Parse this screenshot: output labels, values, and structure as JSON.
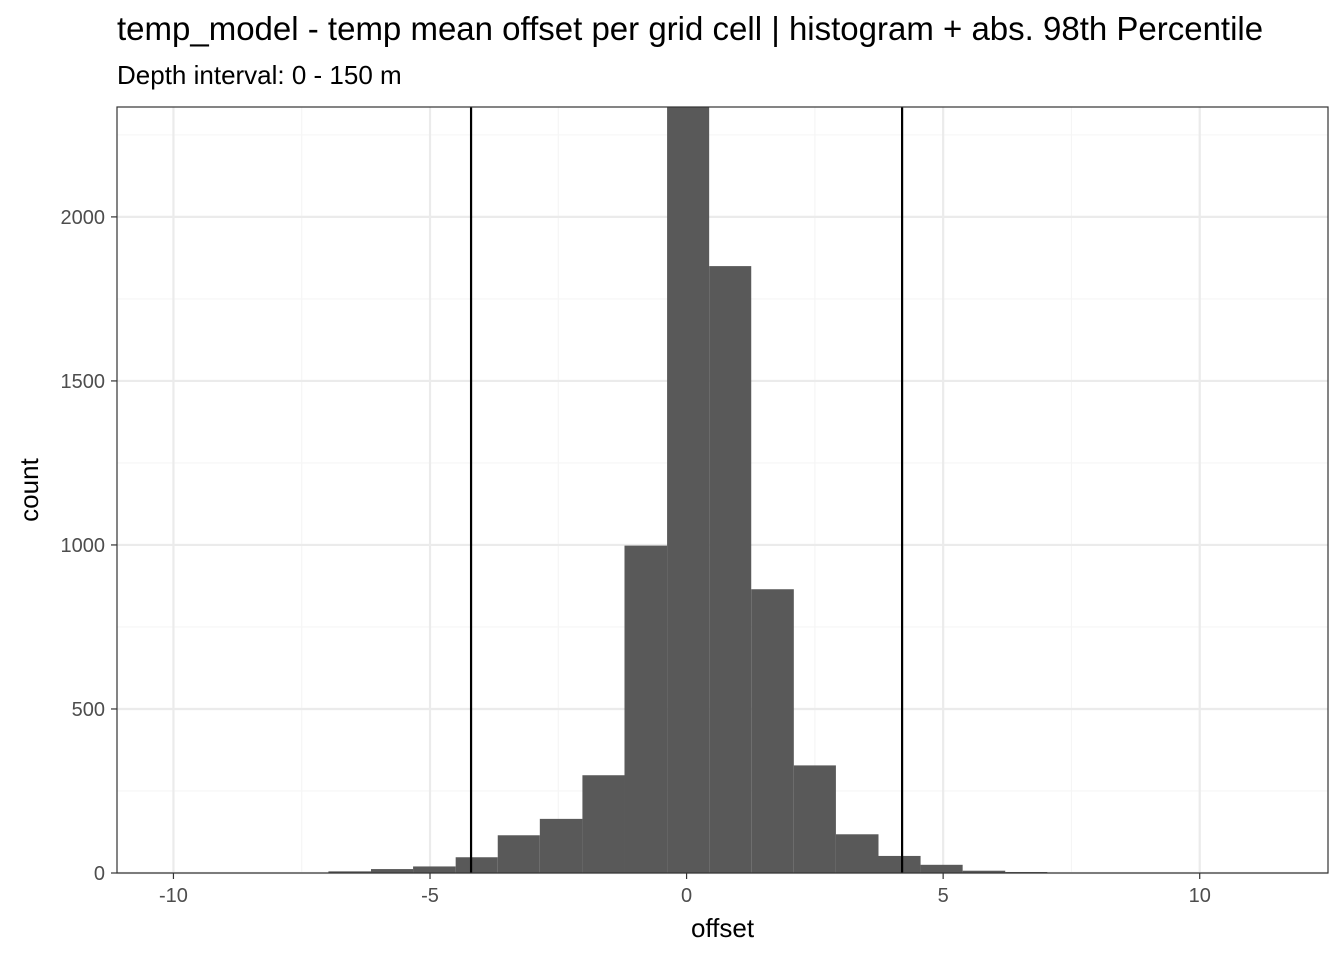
{
  "chart_data": {
    "type": "bar",
    "title": "temp_model  -  temp mean offset per grid cell | histogram + abs. 98th Percentile",
    "subtitle": "Depth interval: 0 - 150 m",
    "xlabel": "offset",
    "ylabel": "count",
    "xlim": [
      -11.1,
      12.5
    ],
    "ylim": [
      0,
      2335
    ],
    "x_ticks": [
      -10,
      -5,
      0,
      5,
      10
    ],
    "y_ticks": [
      0,
      500,
      1000,
      1500,
      2000
    ],
    "x_tick_labels": [
      "-10",
      "-5",
      "0",
      "5",
      "10"
    ],
    "y_tick_labels": [
      "0",
      "500",
      "1000",
      "1500",
      "2000"
    ],
    "bin_width": 0.823,
    "bins": [
      {
        "x0": -6.98,
        "x1": -6.15,
        "count": 5
      },
      {
        "x0": -6.15,
        "x1": -5.33,
        "count": 12
      },
      {
        "x0": -5.33,
        "x1": -4.5,
        "count": 20
      },
      {
        "x0": -4.5,
        "x1": -3.68,
        "count": 48
      },
      {
        "x0": -3.68,
        "x1": -2.86,
        "count": 115
      },
      {
        "x0": -2.86,
        "x1": -2.03,
        "count": 165
      },
      {
        "x0": -2.03,
        "x1": -1.21,
        "count": 298
      },
      {
        "x0": -1.21,
        "x1": -0.38,
        "count": 998
      },
      {
        "x0": -0.38,
        "x1": 0.44,
        "count": 2400
      },
      {
        "x0": 0.44,
        "x1": 1.26,
        "count": 1850
      },
      {
        "x0": 1.26,
        "x1": 2.09,
        "count": 865
      },
      {
        "x0": 2.09,
        "x1": 2.91,
        "count": 328
      },
      {
        "x0": 2.91,
        "x1": 3.74,
        "count": 118
      },
      {
        "x0": 3.74,
        "x1": 4.56,
        "count": 52
      },
      {
        "x0": 4.56,
        "x1": 5.38,
        "count": 25
      },
      {
        "x0": 5.38,
        "x1": 6.21,
        "count": 7
      },
      {
        "x0": 6.21,
        "x1": 7.03,
        "count": 3
      }
    ],
    "percentile_lines": [
      -4.2,
      4.2
    ],
    "grid": true,
    "colors": {
      "bar": "#595959",
      "line": "#000000",
      "grid_major": "#ebebeb",
      "grid_minor": "#f5f5f5",
      "panel_border": "#333333"
    }
  }
}
